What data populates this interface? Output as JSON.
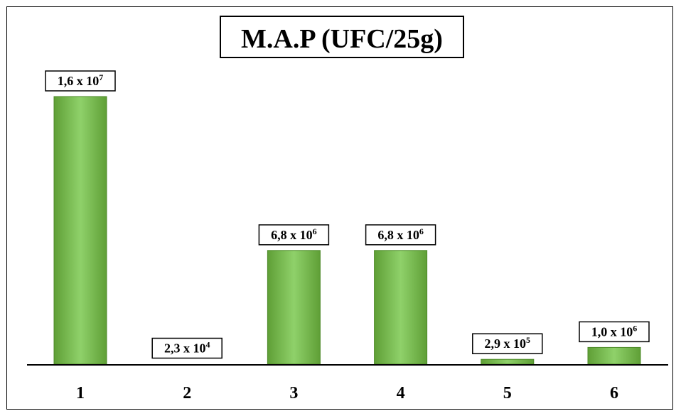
{
  "chart_data": {
    "type": "bar",
    "title": "M.A.P (UFC/25g)",
    "xlabel": "",
    "ylabel": "",
    "categories": [
      "1",
      "2",
      "3",
      "4",
      "5",
      "6"
    ],
    "values": [
      16000000,
      23000,
      6800000,
      6800000,
      290000,
      1000000
    ],
    "data_labels": [
      {
        "mantissa": "1,6 x 10",
        "exponent": "7"
      },
      {
        "mantissa": "2,3 x 10",
        "exponent": "4"
      },
      {
        "mantissa": "6,8 x 10",
        "exponent": "6"
      },
      {
        "mantissa": "6,8 x 10",
        "exponent": "6"
      },
      {
        "mantissa": "2,9 x 10",
        "exponent": "5"
      },
      {
        "mantissa": "1,0 x 10",
        "exponent": "6"
      }
    ],
    "ylim": [
      0,
      16000000
    ],
    "grid": false,
    "legend": "none",
    "colors": {
      "bar_light": "#8fd16a",
      "bar_dark": "#5f9f36",
      "bar_edge": "#4e8a2a"
    }
  }
}
